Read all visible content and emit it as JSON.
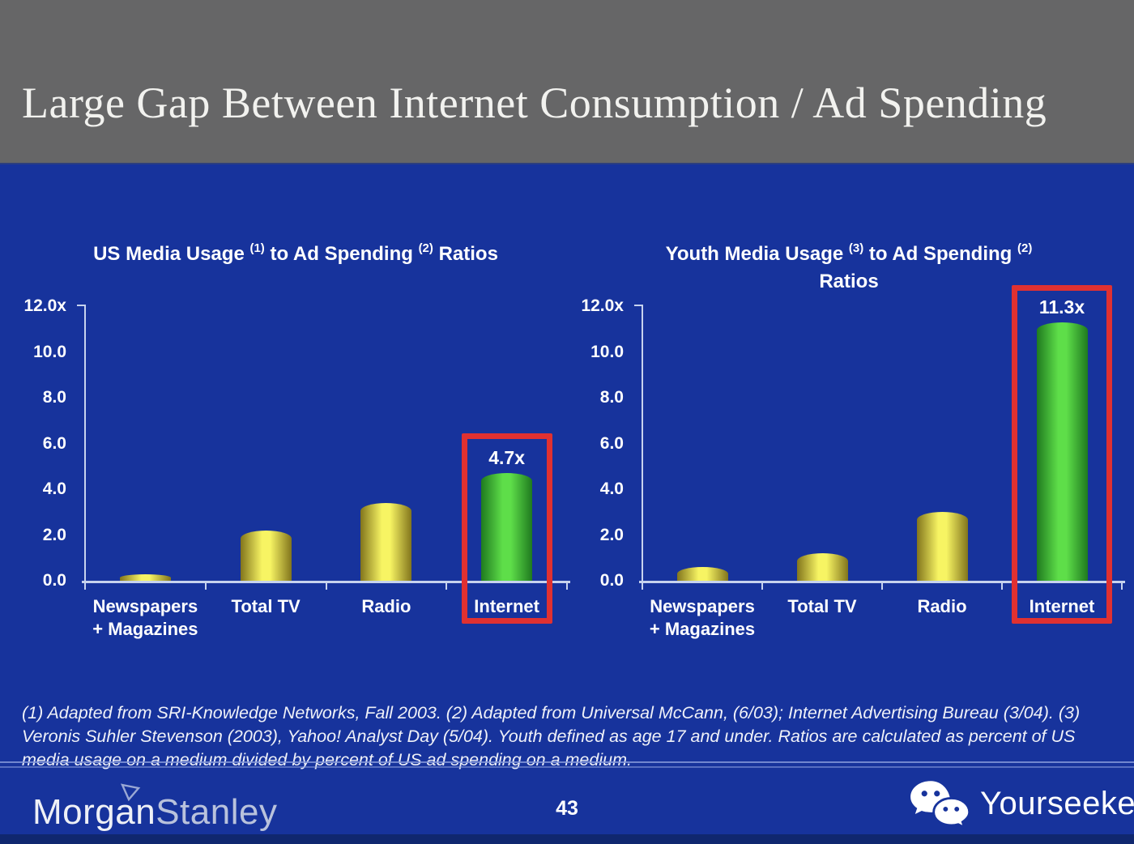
{
  "header": {
    "title": "Large Gap Between Internet Consumption / Ad Spending"
  },
  "chart_data": [
    {
      "type": "bar",
      "title": "US Media Usage (1) to Ad Spending (2) Ratios",
      "title_parts": [
        {
          "text": "US Media Usage ",
          "sup": false
        },
        {
          "text": "(1)",
          "sup": true
        },
        {
          "text": " to Ad Spending ",
          "sup": false
        },
        {
          "text": "(2)",
          "sup": true
        },
        {
          "text": " Ratios",
          "sup": false
        }
      ],
      "title_line2": "",
      "categories": [
        "Newspapers + Magazines",
        "Total TV",
        "Radio",
        "Internet"
      ],
      "category_lines": [
        [
          "Newspapers",
          "+ Magazines"
        ],
        [
          "Total TV"
        ],
        [
          "Radio"
        ],
        [
          "Internet"
        ]
      ],
      "values": [
        0.3,
        2.2,
        3.4,
        4.7
      ],
      "bar_colors": [
        "yellow",
        "yellow",
        "yellow",
        "green"
      ],
      "highlight_index": 3,
      "highlight_label": "4.7x",
      "y_tick_labels": [
        "12.0x",
        "10.0",
        "8.0",
        "6.0",
        "4.0",
        "2.0",
        "0.0"
      ],
      "ylim": [
        0,
        12
      ],
      "grid": false,
      "legend": false
    },
    {
      "type": "bar",
      "title": "Youth Media Usage (3) to Ad Spending (2) Ratios",
      "title_parts": [
        {
          "text": "Youth Media Usage ",
          "sup": false
        },
        {
          "text": "(3)",
          "sup": true
        },
        {
          "text": " to Ad Spending ",
          "sup": false
        },
        {
          "text": "(2)",
          "sup": true
        }
      ],
      "title_line2": "Ratios",
      "categories": [
        "Newspapers + Magazines",
        "Total TV",
        "Radio",
        "Internet"
      ],
      "category_lines": [
        [
          "Newspapers",
          "+ Magazines"
        ],
        [
          "Total TV"
        ],
        [
          "Radio"
        ],
        [
          "Internet"
        ]
      ],
      "values": [
        0.6,
        1.2,
        3.0,
        11.3
      ],
      "bar_colors": [
        "yellow",
        "yellow",
        "yellow",
        "green"
      ],
      "highlight_index": 3,
      "highlight_label": "11.3x",
      "y_tick_labels": [
        "12.0x",
        "10.0",
        "8.0",
        "6.0",
        "4.0",
        "2.0",
        "0.0"
      ],
      "ylim": [
        0,
        12
      ],
      "grid": false,
      "legend": false
    }
  ],
  "footnote": {
    "text": "(1) Adapted from SRI-Knowledge Networks, Fall 2003.  (2) Adapted from Universal McCann, (6/03); Internet Advertising Bureau (3/04). (3) Veronis Suhler Stevenson (2003), Yahoo! Analyst Day (5/04).  Youth defined as age 17 and under.  Ratios are calculated as percent of US media usage on a medium divided by percent of US ad spending on a medium."
  },
  "footer": {
    "logo_morgan": "Morgan",
    "logo_stanley": "Stanley",
    "page_number": "43",
    "brand_name": "Yourseeker"
  },
  "colors": {
    "slide_bg": "#17339c",
    "header_bg": "#666667",
    "axis": "#c7d3ee",
    "highlight_red": "#e03131",
    "separator": "#8296d8",
    "bottom_strip": "#10276f",
    "bar_yellow_edge": "#82751c",
    "bar_yellow_mid": "#f7f463",
    "bar_green_edge": "#1f7a1f",
    "bar_green_mid": "#5ede49",
    "morgan_text": "#eef0f6",
    "stanley_text": "#b9c2dc"
  }
}
